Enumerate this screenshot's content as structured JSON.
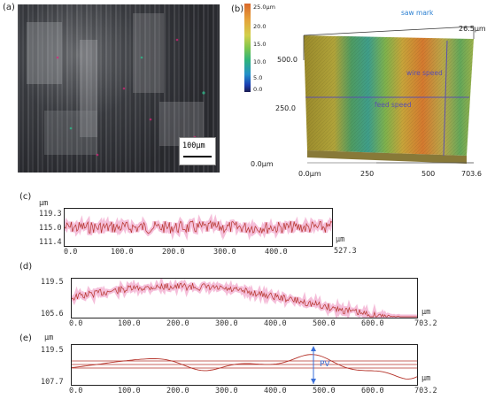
{
  "panel_a": {
    "label": "(a)",
    "scalebar_text": "100μm"
  },
  "panel_b": {
    "label": "(b)",
    "colorbar": {
      "max": "25.0μm",
      "ticks": [
        "20.0",
        "15.0",
        "10.0",
        "5.0",
        "0.0"
      ]
    },
    "z_axis": [
      "500.0",
      "250.0",
      "0.0μm"
    ],
    "x_axis": [
      "0.0μm",
      "250",
      "500",
      "703.6"
    ],
    "height_label": "26.5μm",
    "annotations": {
      "saw_mark": "saw mark",
      "wire_speed": "wire speed",
      "feed_speed": "feed speed"
    }
  },
  "panel_c": {
    "label": "(c)",
    "unit_y": "μm",
    "unit_x": "μm",
    "y_ticks": [
      "119.3",
      "115.0",
      "111.4"
    ],
    "x_ticks": [
      "0.0",
      "100.0",
      "200.0",
      "300.0",
      "400.0"
    ],
    "x_end": "527.3"
  },
  "panel_d": {
    "label": "(d)",
    "unit_x": "μm",
    "y_ticks": [
      "119.5",
      "105.6"
    ],
    "x_ticks": [
      "0.0",
      "100.0",
      "200.0",
      "300.0",
      "400.0",
      "500.0",
      "600.0"
    ],
    "x_end": "703.2"
  },
  "panel_e": {
    "label": "(e)",
    "unit_y": "μm",
    "unit_x": "μm",
    "y_ticks": [
      "119.5",
      "107.7"
    ],
    "x_ticks": [
      "0.0",
      "100.0",
      "200.0",
      "300.0",
      "400.0",
      "500.0",
      "600.0"
    ],
    "x_end": "703.2",
    "pv_label": "PV"
  },
  "colors": {
    "profile": "#b5332a",
    "halo": "#f4b8d6",
    "pv_arrow": "#3a6fd8"
  }
}
